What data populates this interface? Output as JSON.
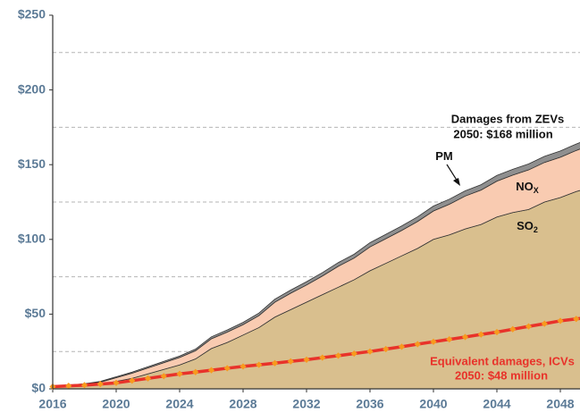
{
  "chart_data": {
    "type": "stacked_area_line",
    "x": [
      2016,
      2017,
      2018,
      2019,
      2020,
      2021,
      2022,
      2023,
      2024,
      2025,
      2026,
      2027,
      2028,
      2029,
      2030,
      2031,
      2032,
      2033,
      2034,
      2035,
      2036,
      2037,
      2038,
      2039,
      2040,
      2041,
      2042,
      2043,
      2044,
      2045,
      2046,
      2047,
      2048,
      2049,
      2050
    ],
    "series": [
      {
        "name": "SO",
        "name_sub": "2",
        "color": "#d9bf8e",
        "values": [
          1,
          1.5,
          2,
          3,
          5,
          7,
          10,
          13,
          16,
          20,
          27,
          31,
          36,
          41,
          48,
          53,
          58,
          63,
          68,
          73,
          79,
          84,
          89,
          94,
          100,
          103,
          107,
          110,
          115,
          118,
          120,
          125,
          128,
          132,
          135
        ]
      },
      {
        "name": "NO",
        "name_sub": "X",
        "color": "#f9cbb1",
        "values": [
          0.5,
          0.7,
          1,
          1.5,
          2.5,
          3.5,
          4,
          4.5,
          5,
          5.5,
          6.5,
          7,
          7,
          8,
          10,
          11,
          11.5,
          12.5,
          14,
          14.5,
          16,
          16.5,
          17,
          18,
          19,
          20.5,
          22,
          23,
          24,
          25,
          26.5,
          26.5,
          27,
          27.5,
          28.5
        ]
      },
      {
        "name": "PM",
        "color": "#8f8f8f",
        "values": [
          0.3,
          0.3,
          0.4,
          0.5,
          0.6,
          0.7,
          0.8,
          0.9,
          1,
          1.1,
          1.3,
          1.4,
          1.5,
          1.7,
          2,
          2.1,
          2.2,
          2.3,
          2.5,
          2.6,
          2.8,
          2.9,
          3,
          3.1,
          3.3,
          3.4,
          3.5,
          3.6,
          3.8,
          3.9,
          4,
          4.1,
          4.2,
          4.3,
          4.5
        ]
      }
    ],
    "line_series": {
      "name": "Equivalent damages, ICVs",
      "color": "#e8322a",
      "marker_color": "#f79a1e",
      "values": [
        1.5,
        2,
        2.5,
        3.2,
        4,
        5.5,
        7,
        8.5,
        10,
        11.2,
        12.5,
        13.8,
        15,
        16.1,
        17.2,
        18.4,
        19.5,
        20.9,
        22.2,
        23.6,
        25,
        26.6,
        28.2,
        29.9,
        31.5,
        33.1,
        34.7,
        36.4,
        38,
        39.9,
        41.8,
        43.6,
        45.5,
        46.8,
        48
      ]
    },
    "annotations": {
      "zev_title": "Damages from ZEVs",
      "zev_total": "2050: $168 million",
      "icv_total": "2050: $48 million"
    },
    "xlim": [
      2016,
      2050
    ],
    "xticks": [
      2016,
      2020,
      2024,
      2028,
      2032,
      2036,
      2040,
      2044,
      2048
    ],
    "ylim": [
      0,
      250
    ],
    "yticks": [
      {
        "value": 0,
        "label": "$0"
      },
      {
        "value": 50,
        "label": "$50"
      },
      {
        "value": 100,
        "label": "$100"
      },
      {
        "value": 150,
        "label": "$150"
      },
      {
        "value": 200,
        "label": "$200"
      },
      {
        "value": 250,
        "label": "$250"
      }
    ],
    "minor_yticks": [
      25,
      75,
      125,
      175,
      225
    ],
    "grid": true
  }
}
